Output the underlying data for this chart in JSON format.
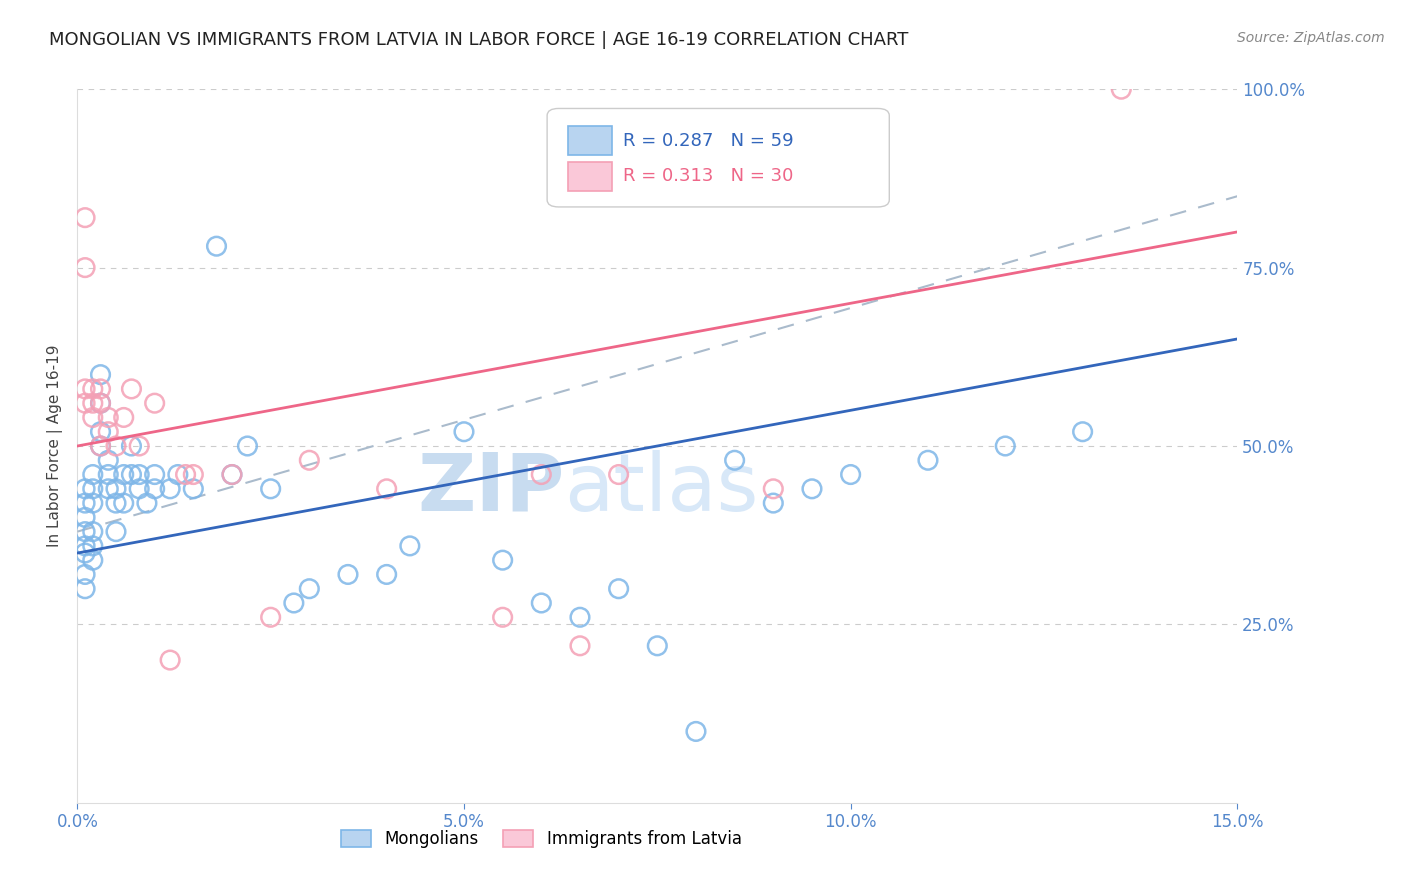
{
  "title": "MONGOLIAN VS IMMIGRANTS FROM LATVIA IN LABOR FORCE | AGE 16-19 CORRELATION CHART",
  "source": "Source: ZipAtlas.com",
  "ylabel": "In Labor Force | Age 16-19",
  "xlim": [
    0.0,
    0.15
  ],
  "ylim": [
    0.0,
    1.0
  ],
  "xtick_labels": [
    "0.0%",
    "5.0%",
    "10.0%",
    "15.0%"
  ],
  "xtick_vals": [
    0.0,
    0.05,
    0.1,
    0.15
  ],
  "ytick_labels": [
    "25.0%",
    "50.0%",
    "75.0%",
    "100.0%"
  ],
  "ytick_vals": [
    0.25,
    0.5,
    0.75,
    1.0
  ],
  "mongolian_color": "#7EB6E8",
  "latvian_color": "#F4A0B5",
  "mongolian_line_color": "#3366BB",
  "latvian_line_color": "#EE6688",
  "dashed_line_color": "#AABBCC",
  "background_color": "#FFFFFF",
  "grid_color": "#CCCCCC",
  "ytick_color": "#5588CC",
  "xtick_color": "#5588CC",
  "mongolian_scatter_x": [
    0.001,
    0.001,
    0.001,
    0.001,
    0.001,
    0.001,
    0.001,
    0.001,
    0.002,
    0.002,
    0.002,
    0.002,
    0.002,
    0.002,
    0.003,
    0.003,
    0.003,
    0.003,
    0.004,
    0.004,
    0.004,
    0.005,
    0.005,
    0.005,
    0.006,
    0.006,
    0.007,
    0.007,
    0.008,
    0.008,
    0.009,
    0.01,
    0.01,
    0.012,
    0.013,
    0.015,
    0.018,
    0.02,
    0.022,
    0.025,
    0.028,
    0.03,
    0.035,
    0.04,
    0.043,
    0.05,
    0.055,
    0.06,
    0.065,
    0.07,
    0.075,
    0.08,
    0.085,
    0.09,
    0.095,
    0.1,
    0.11,
    0.12,
    0.13
  ],
  "mongolian_scatter_y": [
    0.38,
    0.4,
    0.42,
    0.44,
    0.35,
    0.36,
    0.3,
    0.32,
    0.42,
    0.44,
    0.38,
    0.36,
    0.34,
    0.46,
    0.56,
    0.6,
    0.52,
    0.5,
    0.44,
    0.46,
    0.48,
    0.42,
    0.44,
    0.38,
    0.46,
    0.42,
    0.5,
    0.46,
    0.44,
    0.46,
    0.42,
    0.46,
    0.44,
    0.44,
    0.46,
    0.44,
    0.78,
    0.46,
    0.5,
    0.44,
    0.28,
    0.3,
    0.32,
    0.32,
    0.36,
    0.52,
    0.34,
    0.28,
    0.26,
    0.3,
    0.22,
    0.1,
    0.48,
    0.42,
    0.44,
    0.46,
    0.48,
    0.5,
    0.52
  ],
  "latvian_scatter_x": [
    0.001,
    0.001,
    0.001,
    0.001,
    0.002,
    0.002,
    0.002,
    0.003,
    0.003,
    0.003,
    0.004,
    0.004,
    0.005,
    0.006,
    0.007,
    0.008,
    0.01,
    0.012,
    0.014,
    0.015,
    0.02,
    0.025,
    0.03,
    0.04,
    0.055,
    0.06,
    0.065,
    0.07,
    0.09,
    0.135
  ],
  "latvian_scatter_y": [
    0.82,
    0.75,
    0.58,
    0.56,
    0.56,
    0.58,
    0.54,
    0.56,
    0.58,
    0.5,
    0.52,
    0.54,
    0.5,
    0.54,
    0.58,
    0.5,
    0.56,
    0.2,
    0.46,
    0.46,
    0.46,
    0.26,
    0.48,
    0.44,
    0.26,
    0.46,
    0.22,
    0.46,
    0.44,
    1.0
  ],
  "mongolian_trend": [
    0.35,
    0.65
  ],
  "latvian_trend": [
    0.5,
    0.8
  ],
  "dashed_trend": [
    0.38,
    0.85
  ],
  "watermark_zip_color": "#C8DCF0",
  "watermark_atlas_color": "#D8E8F8"
}
